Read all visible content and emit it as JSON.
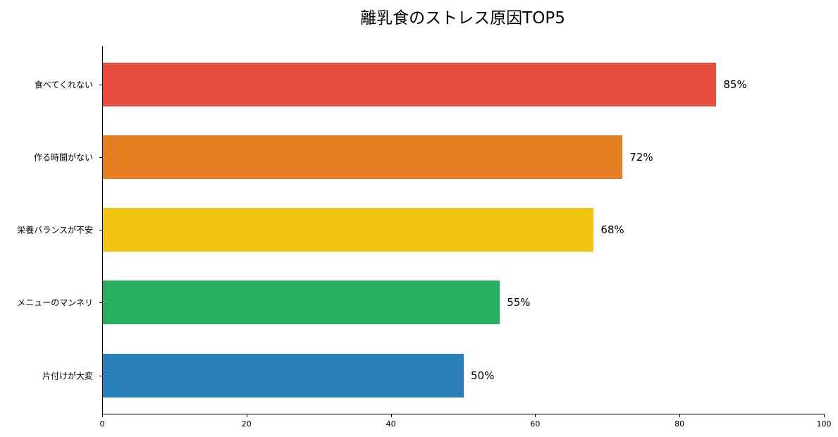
{
  "chart_data": {
    "type": "bar",
    "orientation": "horizontal",
    "title": "離乳食のストレス原因TOP5",
    "categories": [
      "食べてくれない",
      "作る時間がない",
      "栄養バランスが不安",
      "メニューのマンネリ",
      "片付けが大変"
    ],
    "values": [
      85,
      72,
      68,
      55,
      50
    ],
    "value_labels": [
      "85%",
      "72%",
      "68%",
      "55%",
      "50%"
    ],
    "colors": [
      "#e74c3c",
      "#e67e22",
      "#f1c40f",
      "#27ae60",
      "#2980b9"
    ],
    "xlabel": "",
    "ylabel": "",
    "xlim": [
      0,
      100
    ],
    "xticks": [
      "0",
      "20",
      "40",
      "60",
      "80",
      "100"
    ],
    "grid": false,
    "legend": null
  }
}
